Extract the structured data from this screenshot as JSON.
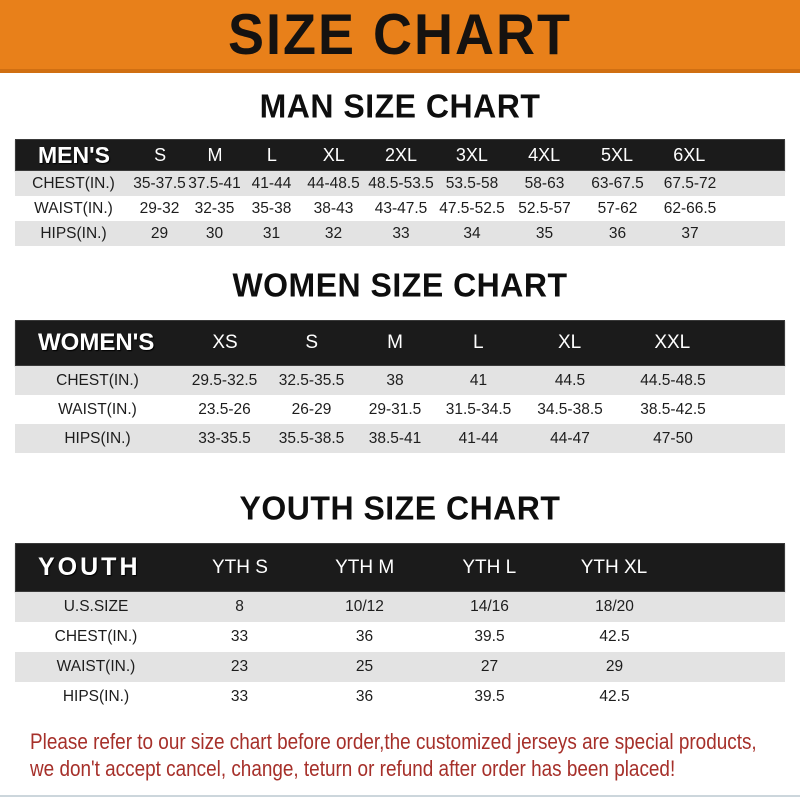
{
  "banner": {
    "title": "SIZE CHART",
    "bg_color": "#E8801A"
  },
  "sections": [
    {
      "heading": "MAN SIZE CHART",
      "header_label": "MEN'S",
      "columns": [
        "S",
        "M",
        "L",
        "XL",
        "2XL",
        "3XL",
        "4XL",
        "5XL",
        "6XL"
      ],
      "rows": [
        {
          "label": "CHEST(IN.)",
          "values": [
            "35-37.5",
            "37.5-41",
            "41-44",
            "44-48.5",
            "48.5-53.5",
            "53.5-58",
            "58-63",
            "63-67.5",
            "67.5-72"
          ]
        },
        {
          "label": "WAIST(IN.)",
          "values": [
            "29-32",
            "32-35",
            "35-38",
            "38-43",
            "43-47.5",
            "47.5-52.5",
            "52.5-57",
            "57-62",
            "62-66.5"
          ]
        },
        {
          "label": "HIPS(IN.)",
          "values": [
            "29",
            "30",
            "31",
            "32",
            "33",
            "34",
            "35",
            "36",
            "37"
          ]
        }
      ]
    },
    {
      "heading": "WOMEN SIZE CHART",
      "header_label": "WOMEN'S",
      "columns": [
        "XS",
        "S",
        "M",
        "L",
        "XL",
        "XXL"
      ],
      "rows": [
        {
          "label": "CHEST(IN.)",
          "values": [
            "29.5-32.5",
            "32.5-35.5",
            "38",
            "41",
            "44.5",
            "44.5-48.5"
          ]
        },
        {
          "label": "WAIST(IN.)",
          "values": [
            "23.5-26",
            "26-29",
            "29-31.5",
            "31.5-34.5",
            "34.5-38.5",
            "38.5-42.5"
          ]
        },
        {
          "label": "HIPS(IN.)",
          "values": [
            "33-35.5",
            "35.5-38.5",
            "38.5-41",
            "41-44",
            "44-47",
            "47-50"
          ]
        }
      ]
    },
    {
      "heading": "YOUTH SIZE CHART",
      "header_label": "YOUTH",
      "columns": [
        "YTH S",
        "YTH M",
        "YTH L",
        "YTH XL"
      ],
      "rows": [
        {
          "label": "U.S.SIZE",
          "values": [
            "8",
            "10/12",
            "14/16",
            "18/20"
          ]
        },
        {
          "label": "CHEST(IN.)",
          "values": [
            "33",
            "36",
            "39.5",
            "42.5"
          ]
        },
        {
          "label": "WAIST(IN.)",
          "values": [
            "23",
            "25",
            "27",
            "29"
          ]
        },
        {
          "label": "HIPS(IN.)",
          "values": [
            "33",
            "36",
            "39.5",
            "42.5"
          ]
        }
      ]
    }
  ],
  "disclaimer": {
    "line1": "Please refer to our size chart before order,the customized jerseys are special products,",
    "line2": "we don't accept cancel, change, teturn or refund after order has been placed!",
    "text_color": "#A6302A"
  }
}
